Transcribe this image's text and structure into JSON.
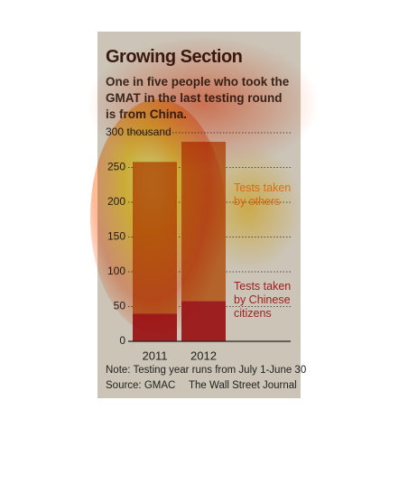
{
  "chart_data": {
    "type": "stacked_bar",
    "title": "Growing Section",
    "subtitle": "One in five people who took the GMAT in the last testing round is from China.",
    "categories": [
      "2011",
      "2012"
    ],
    "series": [
      {
        "name": "Tests taken by Chinese citizens",
        "color": "#9e1f1f",
        "values": [
          40,
          58
        ]
      },
      {
        "name": "Tests taken by others",
        "color": "#b4632a",
        "values": [
          218,
          229
        ]
      }
    ],
    "ylim": [
      0,
      300
    ],
    "yticks": [
      0,
      50,
      100,
      150,
      200,
      250,
      {
        "value": 300,
        "label": "300 thousand"
      }
    ],
    "grid": true,
    "note": "Note: Testing year runs from July 1-June 30",
    "source": "Source: GMAC",
    "credit": "The Wall Street Journal"
  }
}
